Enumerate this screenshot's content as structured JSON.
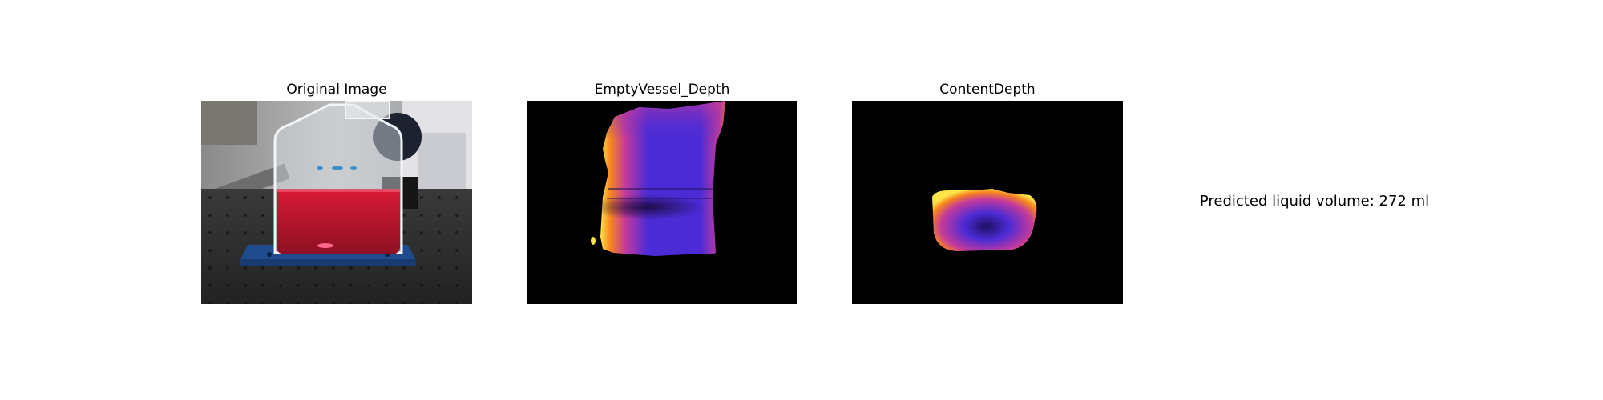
{
  "panels": {
    "original": {
      "title": "Original Image",
      "icon": "photo-of-red-liquid-in-clear-vessel"
    },
    "empty_vessel": {
      "title": "EmptyVessel_Depth",
      "icon": "depth-map-plasma-colormap"
    },
    "content": {
      "title": "ContentDepth",
      "icon": "depth-map-plasma-colormap"
    }
  },
  "prediction": {
    "text": "Predicted liquid volume: 272 ml"
  },
  "colors": {
    "background": "#ffffff",
    "depth_background": "#000000",
    "liquid": "#c8102e",
    "plasma_purple": "#4b2bd6",
    "plasma_magenta": "#c43a9b",
    "plasma_orange": "#f7851e",
    "plasma_yellow": "#fde44a"
  }
}
